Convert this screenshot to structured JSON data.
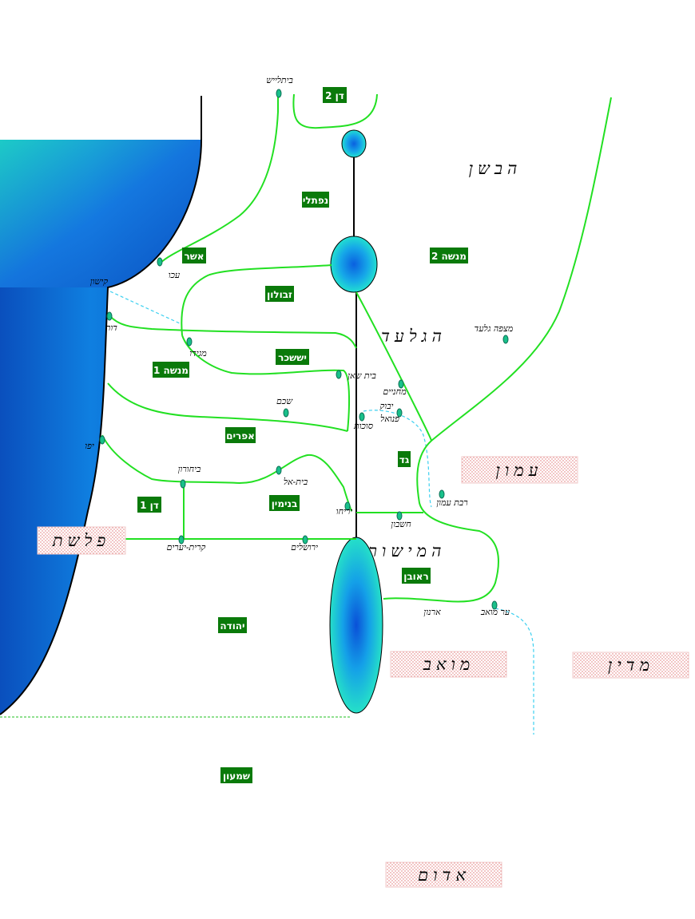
{
  "colors": {
    "tribe_fill": "#0a7a0a",
    "border_green": "#22e022",
    "sea_dark": "#0050c0",
    "sea_light": "#18d0d0",
    "stream": "#3cd0f0",
    "nation_dots": "#e07070"
  },
  "tribes": {
    "dan2": "דן 2",
    "naphtali": "נפתלי",
    "asher": "אשר",
    "zebulun": "זבולון",
    "manasseh2": "מנשה 2",
    "issachar": "יששכר",
    "manasseh1": "מנשה 1",
    "ephraim": "אפרים",
    "gad": "גד",
    "dan1": "דן 1",
    "benjamin": "בנימין",
    "reuben": "ראובן",
    "judah": "יהודה",
    "simeon": "שמעון"
  },
  "regions": {
    "bashan": "הבשן",
    "gilead": "הגלעד",
    "mishor": "המישור"
  },
  "nations": {
    "ammon": "עמון",
    "philistia": "פלשת",
    "moab": "מואב",
    "midian": "מדין",
    "edom": "אדום"
  },
  "cities": {
    "dan": "ביתלייש",
    "acco": "עכו",
    "kishon": "קישון",
    "dor": "דור",
    "megiddo": "מגידו",
    "beit_shean": "בית שאן",
    "machanaim": "מחניים",
    "mitzpe_gilad": "מצפה גלעד",
    "shechem": "שכם",
    "yabok": "יבוק",
    "penuel": "פנואל",
    "sukkot": "סוכות",
    "yafo": "יפו",
    "beit_horon": "ביחורון",
    "beit_el": "בית-אל",
    "rabbat_ammon": "רבת עמון",
    "jericho": "יריחו",
    "heshbon": "חשבון",
    "kiryat_yearim": "קרית-יערים",
    "jerusalem": "ירושלים",
    "arnon": "ארנון",
    "ar_moav": "ער מואב"
  }
}
